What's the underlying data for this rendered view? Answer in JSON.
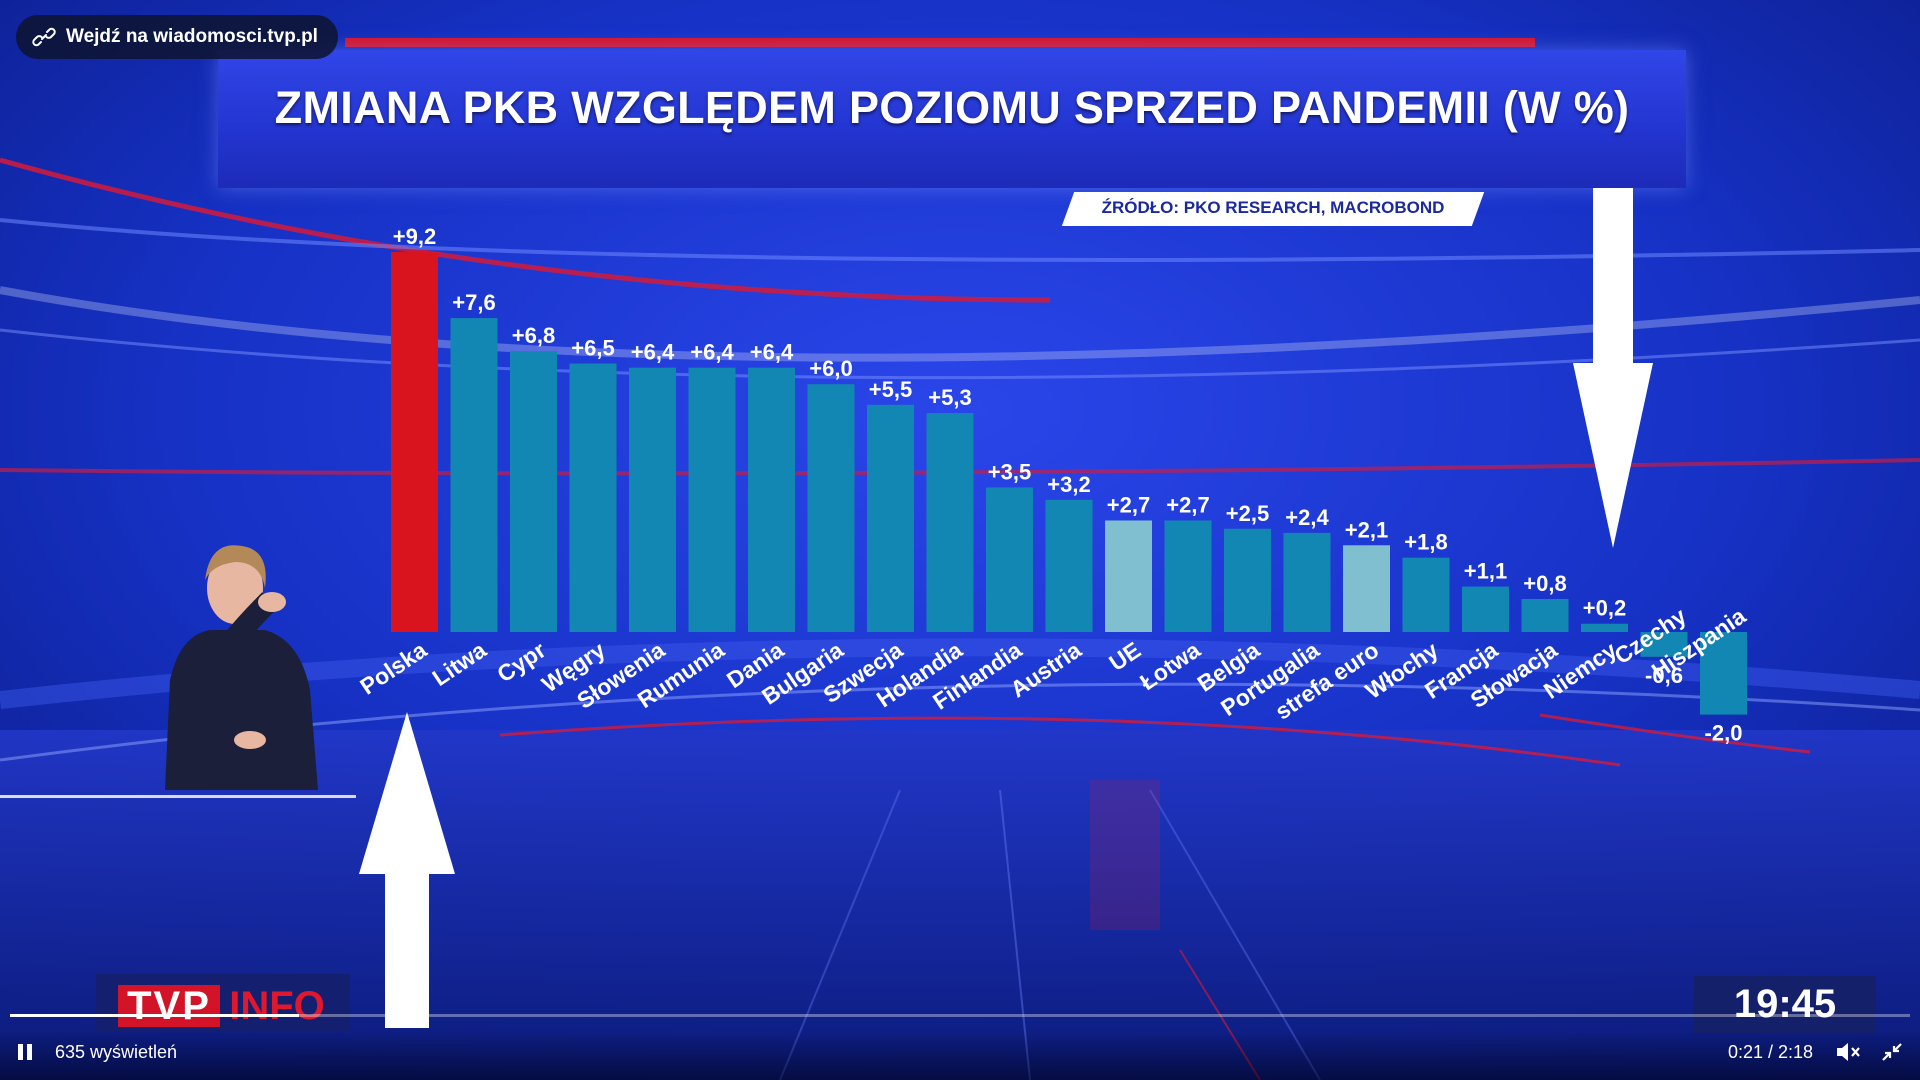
{
  "overlay": {
    "link_label": "Wejdź na wiadomosci.tvp.pl",
    "link_icon": "link-icon"
  },
  "chart_data": {
    "type": "bar",
    "title": "ZMIANA PKB WZGLĘDEM POZIOMU SPRZED PANDEMII (W %)",
    "source": "ŹRÓDŁO: PKO RESEARCH, MACROBOND",
    "categories": [
      "Polska",
      "Litwa",
      "Cypr",
      "Węgry",
      "Słowenia",
      "Rumunia",
      "Dania",
      "Bulgaria",
      "Szwecja",
      "Holandia",
      "Finlandia",
      "Austria",
      "UE",
      "Łotwa",
      "Belgia",
      "Portugalia",
      "strefa euro",
      "Włochy",
      "Francja",
      "Słowacja",
      "Niemcy",
      "Czechy",
      "Hiszpania"
    ],
    "values": [
      9.2,
      7.6,
      6.8,
      6.5,
      6.4,
      6.4,
      6.4,
      6.0,
      5.5,
      5.3,
      3.5,
      3.2,
      2.7,
      2.7,
      2.5,
      2.4,
      2.1,
      1.8,
      1.1,
      0.8,
      0.2,
      -0.6,
      -2.0
    ],
    "value_labels": [
      "+9,2",
      "+7,6",
      "+6,8",
      "+6,5",
      "+6,4",
      "+6,4",
      "+6,4",
      "+6,0",
      "+5,5",
      "+5,3",
      "+3,5",
      "+3,2",
      "+2,7",
      "+2,7",
      "+2,5",
      "+2,4",
      "+2,1",
      "+1,8",
      "+1,1",
      "+0,8",
      "+0,2",
      "-0,6",
      "-2,0"
    ],
    "highlight": {
      "Polska": "#d9141f",
      "UE": "#7fbfd0",
      "strefa euro": "#7fbfd0"
    },
    "colors": {
      "default_bar": "#1387b3",
      "highlight_label": "#ff7f8c",
      "aggregate_label": "#4aa8ff"
    }
  },
  "branding": {
    "logo_left": "TVP",
    "logo_right": "INFO",
    "clock": "19:45"
  },
  "player": {
    "views": "635 wyświetleń",
    "time": "0:21 / 2:18",
    "progress": 0.152,
    "icons": [
      "pause-icon",
      "mute-icon",
      "exit-fullscreen-icon"
    ]
  }
}
